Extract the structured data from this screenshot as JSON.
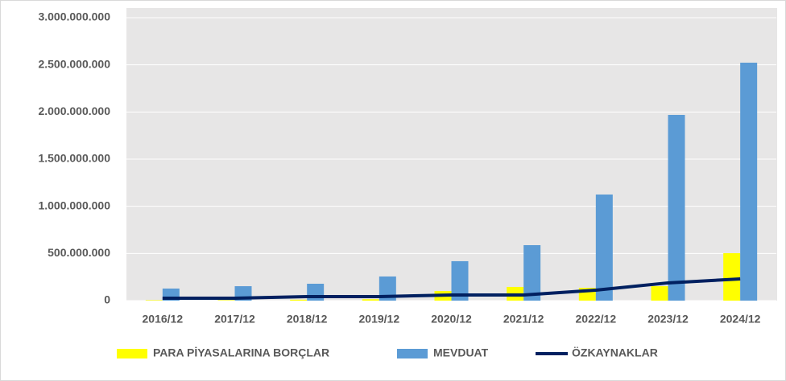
{
  "chart_data": {
    "type": "bar",
    "categories": [
      "2016/12",
      "2017/12",
      "2018/12",
      "2019/12",
      "2020/12",
      "2021/12",
      "2022/12",
      "2023/12",
      "2024/12"
    ],
    "series": [
      {
        "name": "PARA PİYASALARINA BORÇLAR",
        "type": "bar",
        "color": "#ffff00",
        "values": [
          5000000,
          5000000,
          10000000,
          15000000,
          102000000,
          145000000,
          136000000,
          153000000,
          503000000
        ]
      },
      {
        "name": "MEVDUAT",
        "type": "bar",
        "color": "#5b9bd5",
        "values": [
          128000000,
          153000000,
          179000000,
          256000000,
          418000000,
          588000000,
          1125000000,
          1969000000,
          2523000000
        ]
      },
      {
        "name": "ÖZKAYNAKLAR",
        "type": "line",
        "color": "#002060",
        "values": [
          26000000,
          26000000,
          43000000,
          43000000,
          60000000,
          60000000,
          111000000,
          188000000,
          230000000
        ]
      }
    ],
    "ylim": [
      0,
      3000000000
    ],
    "yticks": [
      0,
      {
        "value": 500000000,
        "label": "500.000.000"
      },
      {
        "value": 1000000000,
        "label": "1.000.000.000"
      },
      {
        "value": 1500000000,
        "label": "1.500.000.000"
      },
      {
        "value": 2000000000,
        "label": "2.000.000.000"
      },
      {
        "value": 2500000000,
        "label": "2.500.000.000"
      },
      {
        "value": 3000000000,
        "label": "3.000.000.000"
      }
    ],
    "grid": true,
    "legend": "bottom"
  }
}
